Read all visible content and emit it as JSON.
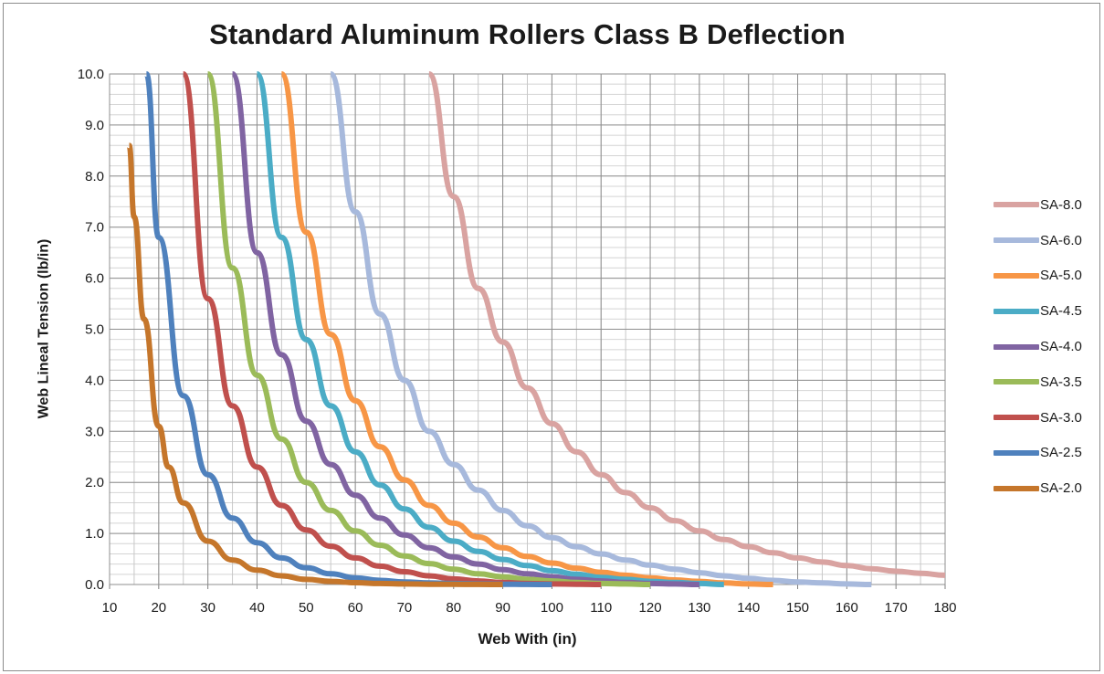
{
  "chart_data": {
    "type": "line",
    "title": "Standard Aluminum Rollers Class B Deflection",
    "xlabel": "Web With (in)",
    "ylabel": "Web Lineal Tension  (lb/in)",
    "xlim": [
      10,
      180
    ],
    "ylim": [
      0,
      10
    ],
    "x_ticks": [
      "10",
      "20",
      "30",
      "40",
      "50",
      "60",
      "70",
      "80",
      "90",
      "100",
      "110",
      "120",
      "130",
      "140",
      "150",
      "160",
      "170",
      "180"
    ],
    "y_ticks": [
      "0.0",
      "1.0",
      "2.0",
      "3.0",
      "4.0",
      "5.0",
      "6.0",
      "7.0",
      "8.0",
      "9.0",
      "10.0"
    ],
    "x_minor_step": 5,
    "y_minor_step": 0.2,
    "grid": true,
    "legend_position": "right",
    "series": [
      {
        "name": "SA-8.0",
        "color": "#d9a3a1",
        "x": [
          75,
          80,
          85,
          90,
          95,
          100,
          105,
          110,
          115,
          120,
          125,
          130,
          135,
          140,
          145,
          150,
          155,
          160,
          165,
          170,
          175,
          180
        ],
        "y": [
          10.0,
          7.6,
          5.8,
          4.75,
          3.85,
          3.15,
          2.6,
          2.15,
          1.8,
          1.5,
          1.25,
          1.05,
          0.88,
          0.74,
          0.62,
          0.52,
          0.44,
          0.37,
          0.31,
          0.26,
          0.22,
          0.18
        ]
      },
      {
        "name": "SA-6.0",
        "color": "#a7b9dc",
        "x": [
          55,
          60,
          65,
          70,
          75,
          80,
          85,
          90,
          95,
          100,
          105,
          110,
          115,
          120,
          125,
          130,
          135,
          140,
          145,
          150,
          155,
          160,
          165
        ],
        "y": [
          10.0,
          7.3,
          5.3,
          4.0,
          3.0,
          2.35,
          1.85,
          1.45,
          1.15,
          0.92,
          0.74,
          0.6,
          0.48,
          0.38,
          0.3,
          0.23,
          0.17,
          0.12,
          0.08,
          0.05,
          0.03,
          0.01,
          0.0
        ]
      },
      {
        "name": "SA-5.0",
        "color": "#f79646",
        "x": [
          45,
          50,
          55,
          60,
          65,
          70,
          75,
          80,
          85,
          90,
          95,
          100,
          105,
          110,
          115,
          120,
          125,
          130,
          135,
          140,
          145
        ],
        "y": [
          10.0,
          6.9,
          4.9,
          3.6,
          2.7,
          2.05,
          1.55,
          1.2,
          0.93,
          0.72,
          0.55,
          0.42,
          0.32,
          0.24,
          0.18,
          0.13,
          0.09,
          0.06,
          0.03,
          0.01,
          0.0
        ]
      },
      {
        "name": "SA-4.5",
        "color": "#4bacc6",
        "x": [
          40,
          45,
          50,
          55,
          60,
          65,
          70,
          75,
          80,
          85,
          90,
          95,
          100,
          105,
          110,
          115,
          120,
          125,
          130,
          135
        ],
        "y": [
          10.0,
          6.8,
          4.8,
          3.5,
          2.6,
          1.95,
          1.48,
          1.12,
          0.85,
          0.65,
          0.49,
          0.37,
          0.27,
          0.2,
          0.14,
          0.1,
          0.06,
          0.04,
          0.02,
          0.0
        ]
      },
      {
        "name": "SA-4.0",
        "color": "#8064a2",
        "x": [
          35,
          40,
          45,
          50,
          55,
          60,
          65,
          70,
          75,
          80,
          85,
          90,
          95,
          100,
          105,
          110,
          115,
          120,
          125,
          130
        ],
        "y": [
          10.0,
          6.5,
          4.5,
          3.2,
          2.35,
          1.75,
          1.3,
          0.97,
          0.72,
          0.54,
          0.4,
          0.29,
          0.21,
          0.15,
          0.1,
          0.07,
          0.04,
          0.02,
          0.01,
          0.0
        ]
      },
      {
        "name": "SA-3.5",
        "color": "#9bbb59",
        "x": [
          30,
          35,
          40,
          45,
          50,
          55,
          60,
          65,
          70,
          75,
          80,
          85,
          90,
          95,
          100,
          105,
          110,
          115,
          120
        ],
        "y": [
          10.0,
          6.2,
          4.1,
          2.85,
          2.0,
          1.45,
          1.05,
          0.77,
          0.56,
          0.41,
          0.3,
          0.21,
          0.15,
          0.1,
          0.07,
          0.04,
          0.02,
          0.01,
          0.0
        ]
      },
      {
        "name": "SA-3.0",
        "color": "#c0504d",
        "x": [
          25,
          30,
          35,
          40,
          45,
          50,
          55,
          60,
          65,
          70,
          75,
          80,
          85,
          90,
          95,
          100,
          105,
          110
        ],
        "y": [
          10.0,
          5.6,
          3.5,
          2.3,
          1.55,
          1.07,
          0.75,
          0.52,
          0.36,
          0.25,
          0.17,
          0.11,
          0.07,
          0.04,
          0.02,
          0.01,
          0.005,
          0.0
        ]
      },
      {
        "name": "SA-2.5",
        "color": "#4f81bd",
        "x": [
          17.5,
          20,
          25,
          30,
          35,
          40,
          45,
          50,
          55,
          60,
          65,
          70,
          75,
          80,
          85,
          90,
          95,
          100
        ],
        "y": [
          10.0,
          6.8,
          3.7,
          2.15,
          1.3,
          0.82,
          0.52,
          0.33,
          0.21,
          0.13,
          0.08,
          0.05,
          0.03,
          0.02,
          0.01,
          0.005,
          0.002,
          0.0
        ]
      },
      {
        "name": "SA-2.0",
        "color": "#c5762b",
        "x": [
          14,
          15,
          17,
          20,
          22,
          25,
          30,
          35,
          40,
          45,
          50,
          55,
          60,
          65,
          70,
          75,
          80,
          85,
          90
        ],
        "y": [
          8.6,
          7.2,
          5.2,
          3.1,
          2.3,
          1.6,
          0.85,
          0.48,
          0.28,
          0.17,
          0.1,
          0.06,
          0.035,
          0.02,
          0.01,
          0.006,
          0.003,
          0.001,
          0.0
        ]
      }
    ]
  }
}
